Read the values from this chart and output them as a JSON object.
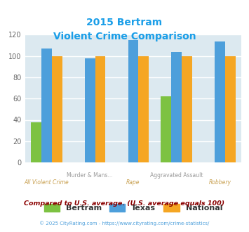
{
  "title_line1": "2015 Bertram",
  "title_line2": "Violent Crime Comparison",
  "categories": [
    "All Violent Crime",
    "Murder & Mans...",
    "Rape",
    "Aggravated Assault",
    "Robbery"
  ],
  "top_labels": [
    "",
    "Murder & Mans...",
    "",
    "Aggravated Assault",
    ""
  ],
  "bot_labels": [
    "All Violent Crime",
    "",
    "Rape",
    "",
    "Robbery"
  ],
  "bertram": [
    38,
    0,
    0,
    62,
    0
  ],
  "texas": [
    107,
    98,
    115,
    104,
    114
  ],
  "national": [
    100,
    100,
    100,
    100,
    100
  ],
  "bertram_color": "#7dc242",
  "texas_color": "#4d9fdb",
  "national_color": "#f5a623",
  "title_color": "#1a9ee8",
  "bg_color": "#dce9f0",
  "ylim": [
    0,
    120
  ],
  "yticks": [
    0,
    20,
    40,
    60,
    80,
    100,
    120
  ],
  "footnote": "Compared to U.S. average. (U.S. average equals 100)",
  "copyright": "© 2025 CityRating.com - https://www.cityrating.com/crime-statistics/",
  "footnote_color": "#8b0000",
  "copyright_color": "#4d9fdb"
}
